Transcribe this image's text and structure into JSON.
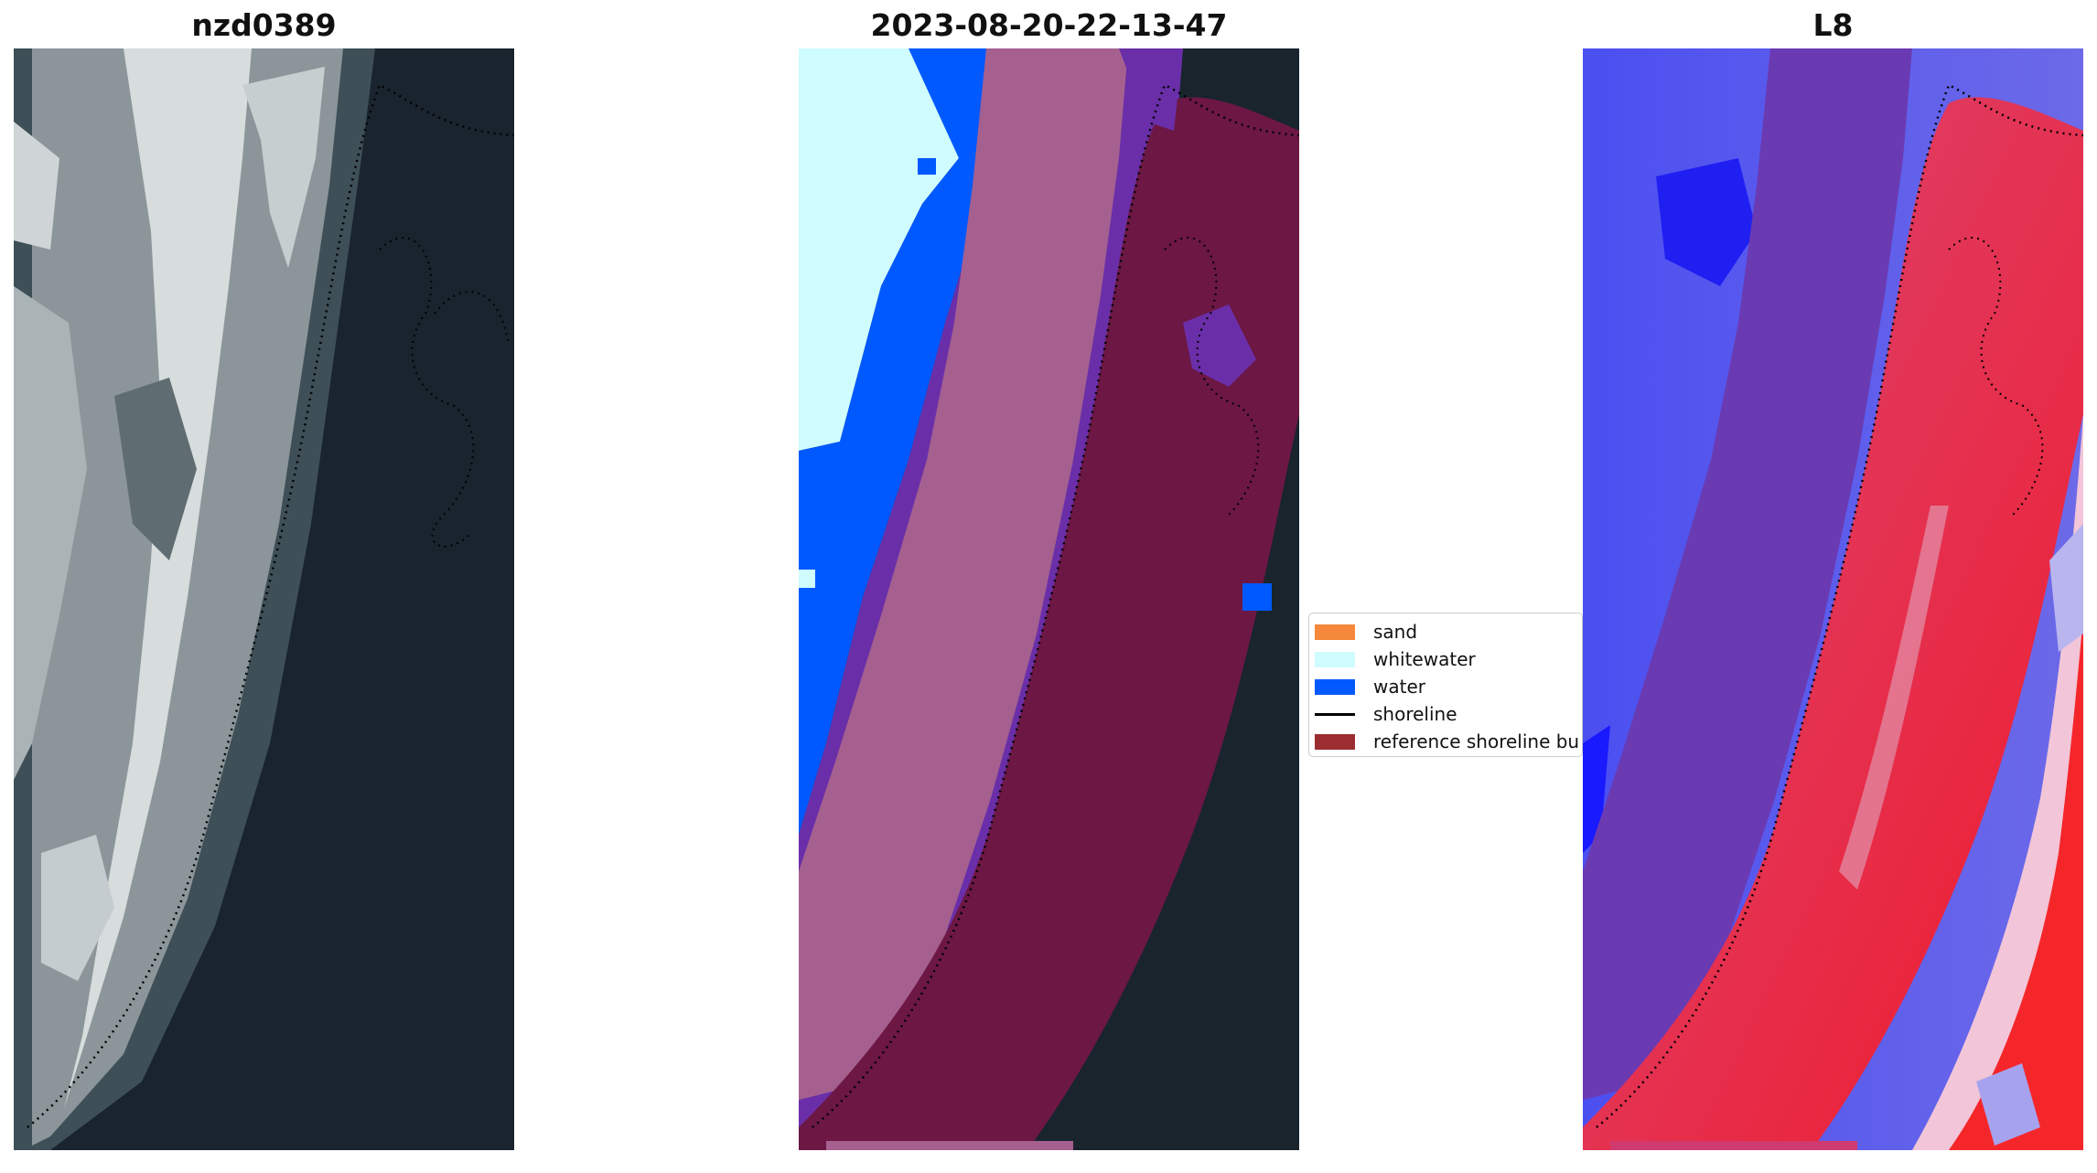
{
  "panels": [
    {
      "id": "rgb",
      "title": "nzd0389"
    },
    {
      "id": "classified",
      "title": "2023-08-20-22-13-47"
    },
    {
      "id": "mndwi",
      "title": "L8"
    }
  ],
  "legend": {
    "items": [
      {
        "label": "sand",
        "color": "#f5883b",
        "kind": "patch"
      },
      {
        "label": "whitewater",
        "color": "#cffcff",
        "kind": "patch"
      },
      {
        "label": "water",
        "color": "#0059ff",
        "kind": "patch"
      },
      {
        "label": "shoreline",
        "color": "#000000",
        "kind": "line"
      },
      {
        "label": "reference shoreline bu",
        "color": "#9b2d30",
        "kind": "patch"
      }
    ]
  },
  "colors": {
    "ocean_dark": "#19242d",
    "sand_overlay": "#a5608f",
    "reference_buffer": "#6c1744",
    "whitewater": "#cffcff",
    "water": "#0059ff",
    "purple_overlay": "#6a2fa8",
    "map_blue": "#4a50f0",
    "map_red": "#e0103a"
  }
}
